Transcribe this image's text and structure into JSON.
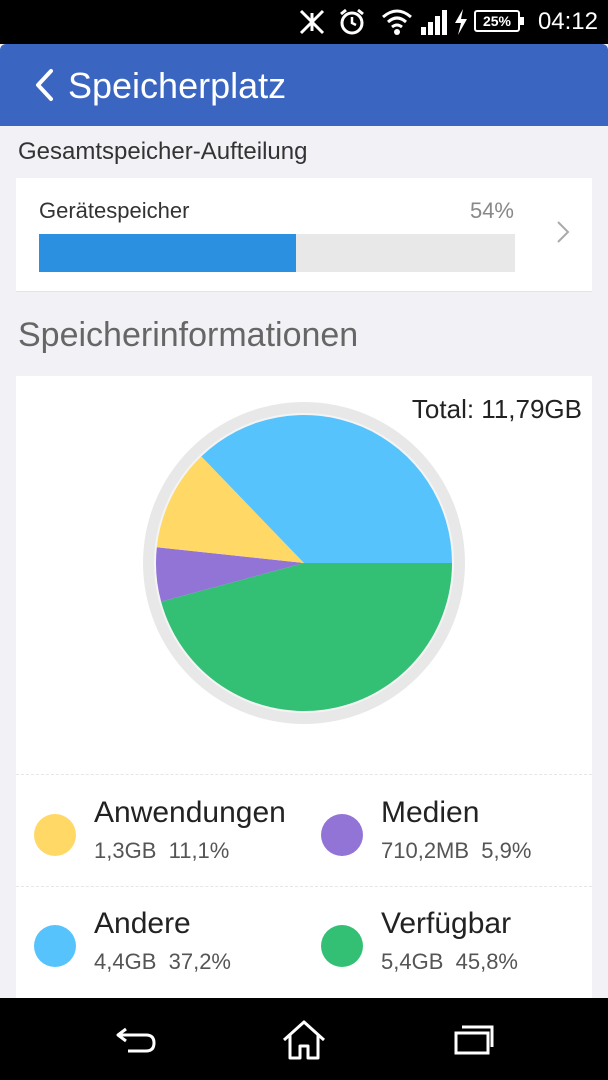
{
  "status_bar": {
    "time": "04:12",
    "battery": "25%",
    "icons": [
      "nfc-muted-icon",
      "alarm-clock-icon",
      "wifi-icon",
      "signal-icon",
      "charging-bolt-icon",
      "battery-icon"
    ]
  },
  "app_bar": {
    "title": "Speicherplatz",
    "back_icon": "chevron-left-icon"
  },
  "storage_split": {
    "heading": "Gesamtspeicher-Aufteilung",
    "device_label": "Gerätespeicher",
    "percent_text": "54%",
    "percent_value": 54,
    "chevron_icon": "chevron-right-icon"
  },
  "storage_info": {
    "heading": "Speicherinformationen",
    "total": "Total: 11,79GB"
  },
  "chart_data": {
    "type": "pie",
    "title": "",
    "unit": "%",
    "slices": [
      {
        "name": "Verfügbar",
        "value": 45.8,
        "color": "#33c074"
      },
      {
        "name": "Medien",
        "value": 5.9,
        "color": "#9273d6"
      },
      {
        "name": "Anwendungen",
        "value": 11.1,
        "color": "#ffd866"
      },
      {
        "name": "Andere",
        "value": 37.2,
        "color": "#56c3fd"
      }
    ]
  },
  "legend": [
    {
      "name": "Anwendungen",
      "size": "1,3GB",
      "percent": "11,1%",
      "color": "#ffd866"
    },
    {
      "name": "Medien",
      "size": "710,2MB",
      "percent": "5,9%",
      "color": "#9273d6"
    },
    {
      "name": "Andere",
      "size": "4,4GB",
      "percent": "37,2%",
      "color": "#56c3fd"
    },
    {
      "name": "Verfügbar",
      "size": "5,4GB",
      "percent": "45,8%",
      "color": "#33c074"
    }
  ],
  "nav_bar": {
    "icons": [
      "back-icon",
      "home-icon",
      "recents-icon"
    ]
  },
  "colors": {
    "app_bar": "#3a65c0",
    "progress_fill": "#2b90e0"
  }
}
